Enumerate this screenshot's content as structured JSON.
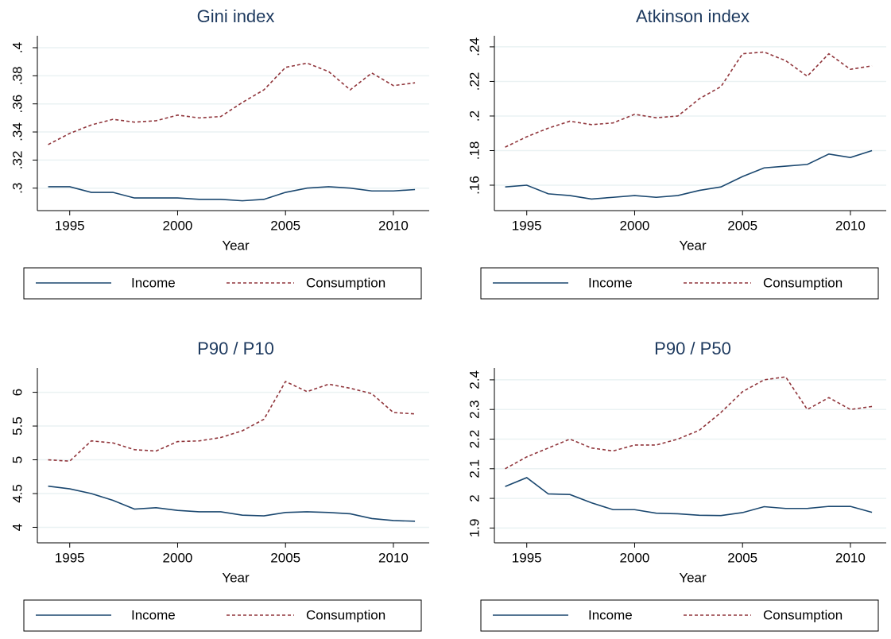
{
  "chart_data": [
    {
      "type": "line",
      "title": "Gini index",
      "xlabel": "Year",
      "x": [
        1994,
        1995,
        1996,
        1997,
        1998,
        1999,
        2000,
        2001,
        2002,
        2003,
        2004,
        2005,
        2006,
        2007,
        2008,
        2009,
        2010,
        2011
      ],
      "series": [
        {
          "name": "Income",
          "color": "#1a476f",
          "dash": "solid",
          "values": [
            0.301,
            0.301,
            0.297,
            0.297,
            0.293,
            0.293,
            0.293,
            0.292,
            0.292,
            0.291,
            0.292,
            0.297,
            0.3,
            0.301,
            0.3,
            0.298,
            0.298,
            0.299
          ]
        },
        {
          "name": "Consumption",
          "color": "#90353b",
          "dash": "dashed",
          "values": [
            0.331,
            0.339,
            0.345,
            0.349,
            0.347,
            0.348,
            0.352,
            0.35,
            0.351,
            0.361,
            0.37,
            0.386,
            0.389,
            0.383,
            0.37,
            0.382,
            0.373,
            0.375
          ]
        }
      ],
      "xlim": [
        1993.5,
        2011.66
      ],
      "xticks": [
        1995,
        2000,
        2005,
        2010
      ],
      "ylim": [
        0.284,
        0.4085
      ],
      "yticks": [
        {
          "value": 0.3,
          "label": ".3"
        },
        {
          "value": 0.32,
          "label": ".32"
        },
        {
          "value": 0.34,
          "label": ".34"
        },
        {
          "value": 0.36,
          "label": ".36"
        },
        {
          "value": 0.38,
          "label": ".38"
        },
        {
          "value": 0.4,
          "label": ".4"
        }
      ],
      "grid": true,
      "legend": "bottom"
    },
    {
      "type": "line",
      "title": "Atkinson index",
      "xlabel": "Year",
      "x": [
        1994,
        1995,
        1996,
        1997,
        1998,
        1999,
        2000,
        2001,
        2002,
        2003,
        2004,
        2005,
        2006,
        2007,
        2008,
        2009,
        2010,
        2011
      ],
      "series": [
        {
          "name": "Income",
          "color": "#1a476f",
          "dash": "solid",
          "values": [
            0.159,
            0.16,
            0.155,
            0.154,
            0.152,
            0.153,
            0.154,
            0.153,
            0.154,
            0.157,
            0.159,
            0.165,
            0.17,
            0.171,
            0.172,
            0.178,
            0.176,
            0.18
          ]
        },
        {
          "name": "Consumption",
          "color": "#90353b",
          "dash": "dashed",
          "values": [
            0.182,
            0.188,
            0.193,
            0.197,
            0.195,
            0.196,
            0.201,
            0.199,
            0.2,
            0.21,
            0.217,
            0.236,
            0.237,
            0.232,
            0.223,
            0.236,
            0.227,
            0.229
          ]
        }
      ],
      "xlim": [
        1993.5,
        2011.66
      ],
      "xticks": [
        1995,
        2000,
        2005,
        2010
      ],
      "ylim": [
        0.1453,
        0.2464
      ],
      "yticks": [
        {
          "value": 0.16,
          "label": ".16"
        },
        {
          "value": 0.18,
          "label": ".18"
        },
        {
          "value": 0.2,
          "label": ".2"
        },
        {
          "value": 0.22,
          "label": ".22"
        },
        {
          "value": 0.24,
          "label": ".24"
        }
      ],
      "grid": true,
      "legend": "bottom"
    },
    {
      "type": "line",
      "title": "P90 / P10",
      "xlabel": "Year",
      "x": [
        1994,
        1995,
        1996,
        1997,
        1998,
        1999,
        2000,
        2001,
        2002,
        2003,
        2004,
        2005,
        2006,
        2007,
        2008,
        2009,
        2010,
        2011
      ],
      "series": [
        {
          "name": "Income",
          "color": "#1a476f",
          "dash": "solid",
          "values": [
            4.61,
            4.57,
            4.5,
            4.4,
            4.27,
            4.29,
            4.25,
            4.23,
            4.23,
            4.18,
            4.17,
            4.22,
            4.23,
            4.22,
            4.2,
            4.13,
            4.1,
            4.09
          ]
        },
        {
          "name": "Consumption",
          "color": "#90353b",
          "dash": "dashed",
          "values": [
            5.0,
            4.98,
            5.28,
            5.25,
            5.15,
            5.13,
            5.27,
            5.28,
            5.33,
            5.43,
            5.6,
            6.16,
            6.01,
            6.12,
            6.06,
            5.98,
            5.7,
            5.68
          ]
        }
      ],
      "xlim": [
        1993.5,
        2011.66
      ],
      "xticks": [
        1995,
        2000,
        2005,
        2010
      ],
      "ylim": [
        3.77,
        6.36
      ],
      "yticks": [
        4,
        4.5,
        5,
        5.5,
        6
      ],
      "grid": true,
      "legend": "bottom"
    },
    {
      "type": "line",
      "title": "P90 / P50",
      "xlabel": "Year",
      "x": [
        1994,
        1995,
        1996,
        1997,
        1998,
        1999,
        2000,
        2001,
        2002,
        2003,
        2004,
        2005,
        2006,
        2007,
        2008,
        2009,
        2010,
        2011
      ],
      "series": [
        {
          "name": "Income",
          "color": "#1a476f",
          "dash": "solid",
          "values": [
            2.04,
            2.07,
            2.015,
            2.013,
            1.985,
            1.962,
            1.962,
            1.95,
            1.948,
            1.943,
            1.942,
            1.952,
            1.972,
            1.966,
            1.966,
            1.973,
            1.973,
            1.953
          ]
        },
        {
          "name": "Consumption",
          "color": "#90353b",
          "dash": "dashed",
          "values": [
            2.1,
            2.14,
            2.17,
            2.2,
            2.17,
            2.16,
            2.18,
            2.18,
            2.2,
            2.23,
            2.29,
            2.36,
            2.4,
            2.41,
            2.3,
            2.34,
            2.3,
            2.31
          ]
        }
      ],
      "xlim": [
        1993.5,
        2011.66
      ],
      "xticks": [
        1995,
        2000,
        2005,
        2010
      ],
      "ylim": [
        1.85,
        2.44
      ],
      "yticks": [
        1.9,
        2,
        2.1,
        2.2,
        2.3,
        2.4
      ],
      "grid": true,
      "legend": "bottom"
    }
  ]
}
